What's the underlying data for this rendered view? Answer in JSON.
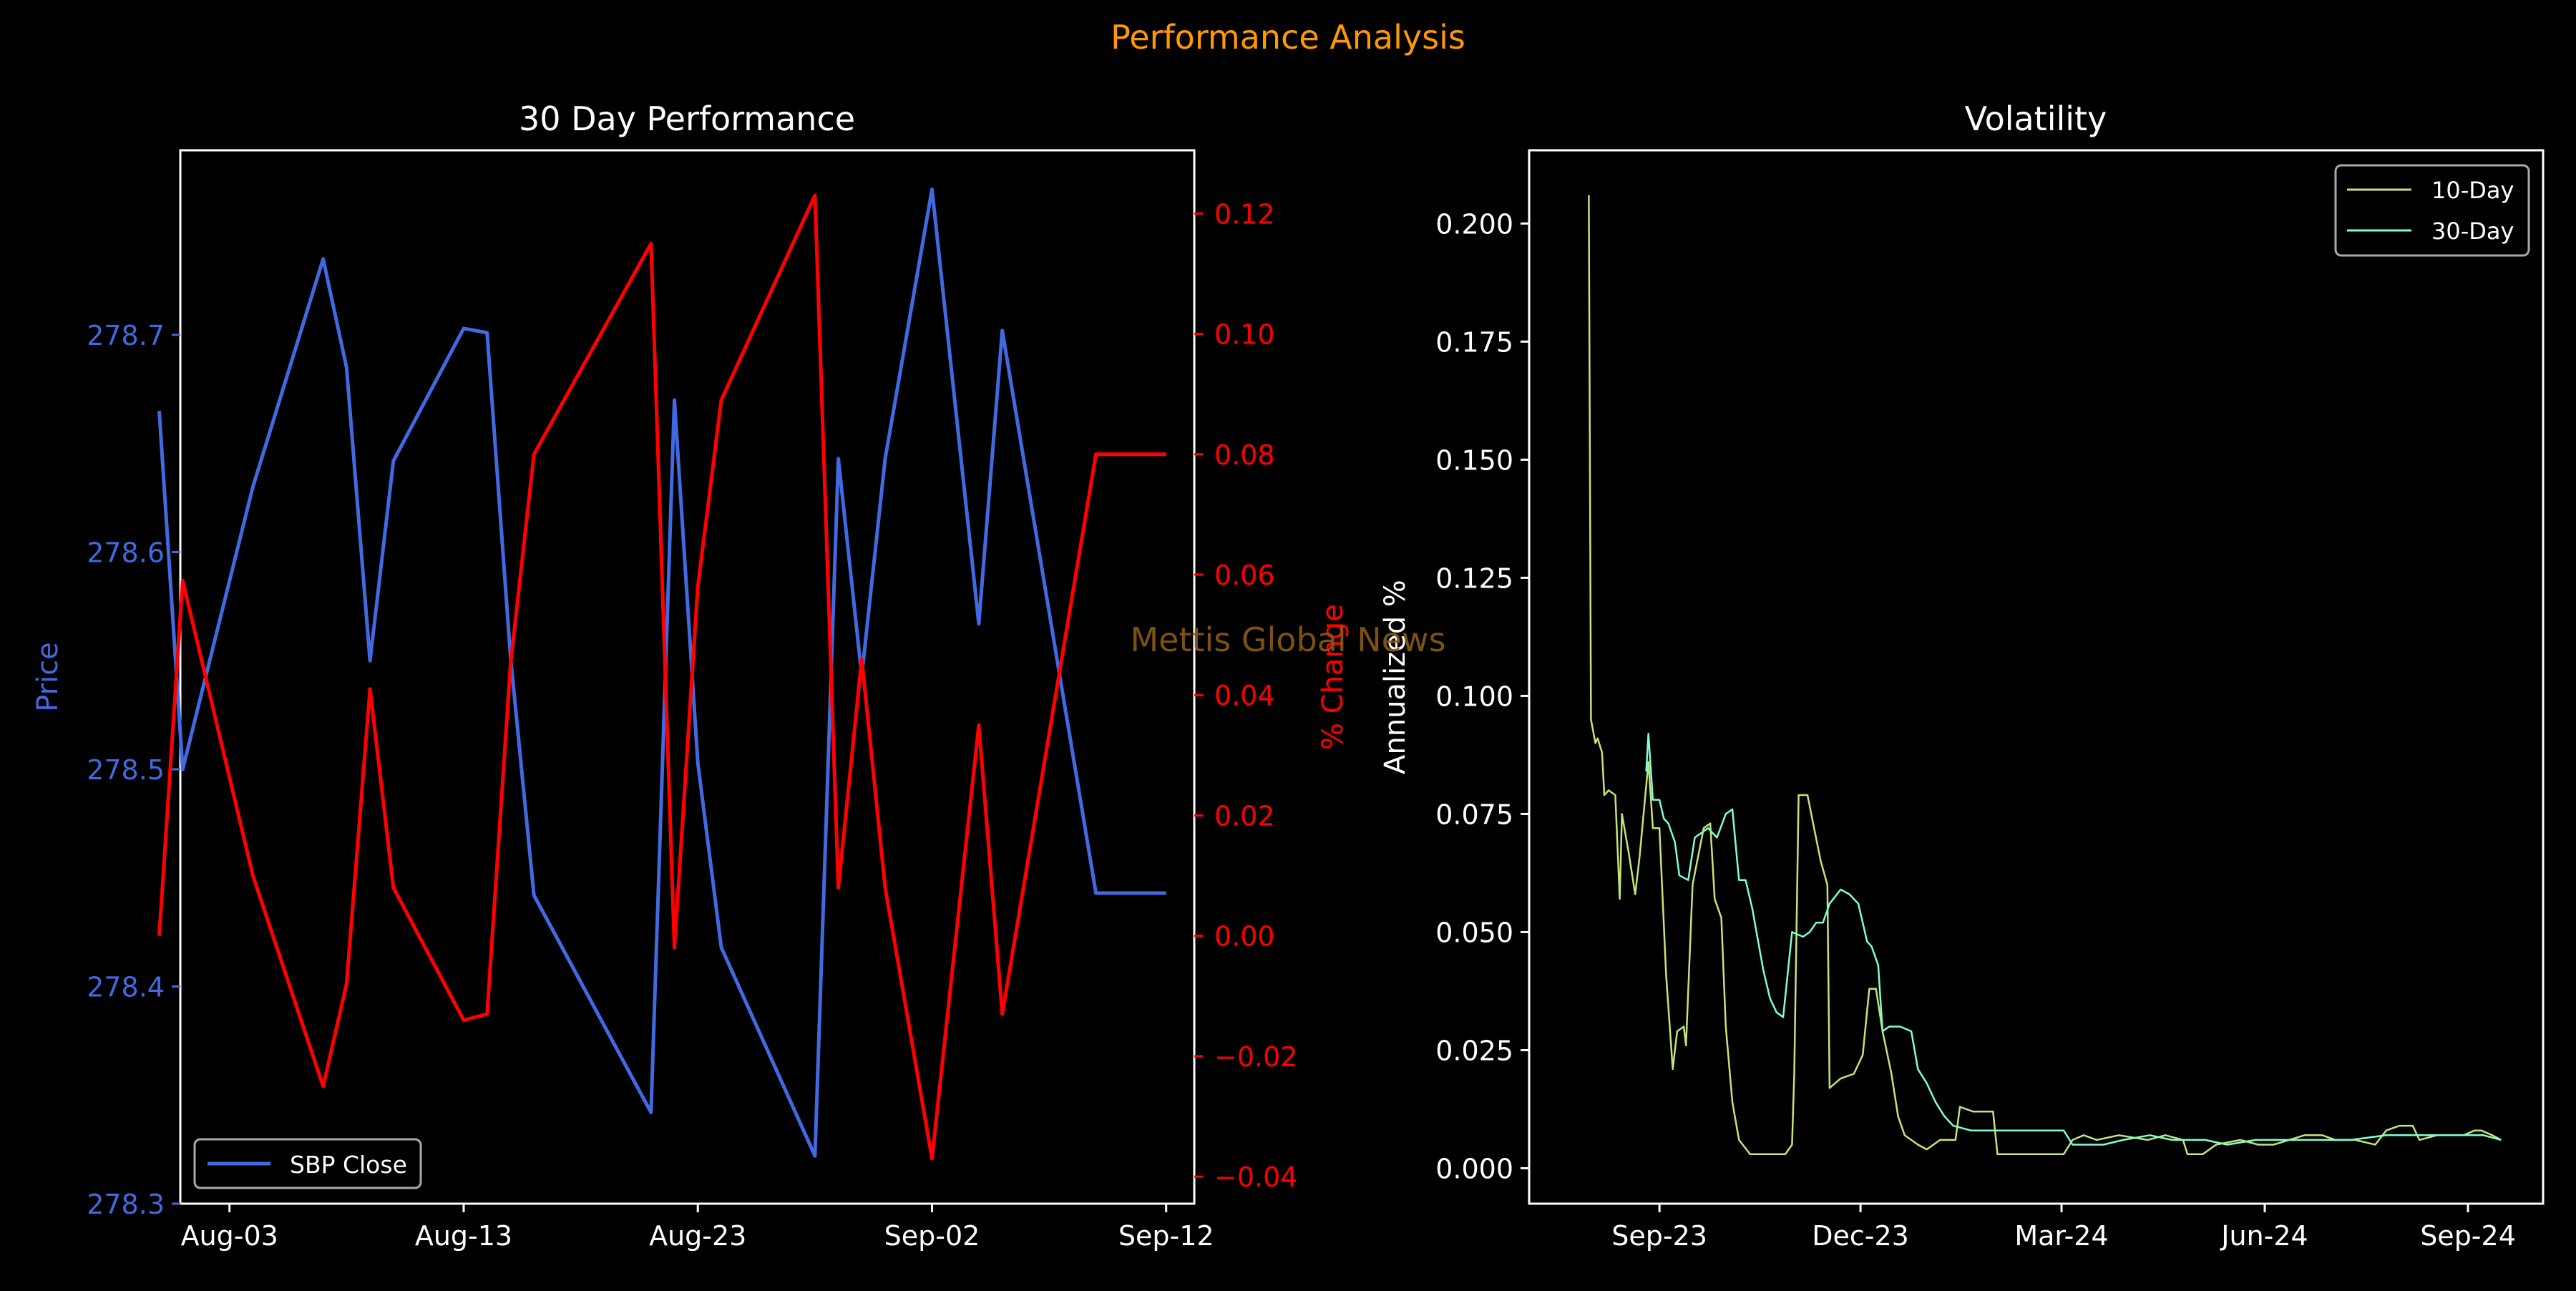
{
  "figure": {
    "title": "Performance Analysis",
    "watermark": "Mettis Global News",
    "title_color": "#ff9900",
    "watermark_color": "#8a5a14"
  },
  "chart_data": [
    {
      "type": "line",
      "title": "30 Day Performance",
      "xlabel": "",
      "ylabel": "Price",
      "ylabel_right": "% Change",
      "x_ticks": [
        "Aug-03",
        "Aug-13",
        "Aug-23",
        "Sep-02",
        "Sep-12"
      ],
      "x_tick_days": [
        3,
        13,
        23,
        33,
        43
      ],
      "x_range": [
        0.9,
        44.2
      ],
      "ylim": [
        278.3,
        278.785
      ],
      "y_ticks": [
        278.3,
        278.4,
        278.5,
        278.6,
        278.7
      ],
      "y_tick_labels": [
        "278.3",
        "278.4",
        "278.5",
        "278.6",
        "278.7"
      ],
      "ylim_right": [
        -0.0445,
        0.1305
      ],
      "y_ticks_right": [
        -0.04,
        -0.02,
        0.0,
        0.02,
        0.04,
        0.06,
        0.08,
        0.1,
        0.12
      ],
      "y_tick_labels_right": [
        "−0.04",
        "−0.02",
        "0.00",
        "0.02",
        "0.04",
        "0.06",
        "0.08",
        "0.10",
        "0.12"
      ],
      "legend": "lower-left",
      "x_dates": [
        "2023-07-31",
        "2023-08-01",
        "2023-08-04",
        "2023-08-07",
        "2023-08-08",
        "2023-08-09",
        "2023-08-10",
        "2023-08-13",
        "2023-08-14",
        "2023-08-15",
        "2023-08-16",
        "2023-08-21",
        "2023-08-22",
        "2023-08-23",
        "2023-08-24",
        "2023-08-28",
        "2023-08-29",
        "2023-08-30",
        "2023-08-31",
        "2023-09-02",
        "2023-09-04",
        "2023-09-05",
        "2023-09-09",
        "2023-09-12"
      ],
      "series": [
        {
          "name": "SBP Close",
          "axis": "left",
          "color": "#4169e1",
          "values": [
            278.665,
            278.5,
            278.63,
            278.735,
            278.685,
            278.55,
            278.642,
            278.703,
            278.701,
            278.552,
            278.442,
            278.342,
            278.67,
            278.503,
            278.418,
            278.322,
            278.643,
            278.543,
            278.643,
            278.767,
            278.567,
            278.702,
            278.443,
            278.443
          ]
        },
        {
          "name": "% Change",
          "axis": "right",
          "color": "#ff0000",
          "values": [
            0.0,
            0.059,
            0.01,
            -0.025,
            -0.008,
            0.041,
            0.008,
            -0.014,
            -0.013,
            0.045,
            0.08,
            0.115,
            -0.002,
            0.058,
            0.089,
            0.123,
            0.008,
            0.046,
            0.008,
            -0.037,
            0.035,
            -0.013,
            0.08,
            0.08
          ]
        }
      ]
    },
    {
      "type": "line",
      "title": "Volatility",
      "xlabel": "",
      "ylabel": "Annualized %",
      "x_ticks": [
        "Sep-23",
        "Dec-23",
        "Mar-24",
        "Jun-24",
        "Sep-24"
      ],
      "x_tick_dates": [
        "2023-09-01",
        "2023-12-01",
        "2024-03-01",
        "2024-06-01",
        "2024-09-01"
      ],
      "x_range": [
        "2023-07-04",
        "2024-10-05"
      ],
      "ylim": [
        -0.0075,
        0.2155
      ],
      "y_ticks": [
        0.0,
        0.025,
        0.05,
        0.075,
        0.1,
        0.125,
        0.15,
        0.175,
        0.2
      ],
      "y_tick_labels": [
        "0.000",
        "0.025",
        "0.050",
        "0.075",
        "0.100",
        "0.125",
        "0.150",
        "0.175",
        "0.200"
      ],
      "legend": "top-right",
      "series": [
        {
          "name": "10-Day",
          "color": "#c5e478",
          "points": [
            [
              "2023-07-31",
              0.206
            ],
            [
              "2023-08-01",
              0.095
            ],
            [
              "2023-08-03",
              0.09
            ],
            [
              "2023-08-04",
              0.091
            ],
            [
              "2023-08-06",
              0.088
            ],
            [
              "2023-08-07",
              0.079
            ],
            [
              "2023-08-09",
              0.08
            ],
            [
              "2023-08-12",
              0.079
            ],
            [
              "2023-08-14",
              0.057
            ],
            [
              "2023-08-15",
              0.075
            ],
            [
              "2023-08-18",
              0.067
            ],
            [
              "2023-08-21",
              0.058
            ],
            [
              "2023-08-23",
              0.066
            ],
            [
              "2023-08-27",
              0.086
            ],
            [
              "2023-08-29",
              0.072
            ],
            [
              "2023-09-01",
              0.072
            ],
            [
              "2023-09-04",
              0.041
            ],
            [
              "2023-09-07",
              0.021
            ],
            [
              "2023-09-09",
              0.029
            ],
            [
              "2023-09-12",
              0.03
            ],
            [
              "2023-09-13",
              0.026
            ],
            [
              "2023-09-16",
              0.06
            ],
            [
              "2023-09-21",
              0.072
            ],
            [
              "2023-09-24",
              0.073
            ],
            [
              "2023-09-26",
              0.057
            ],
            [
              "2023-09-29",
              0.053
            ],
            [
              "2023-10-01",
              0.03
            ],
            [
              "2023-10-04",
              0.014
            ],
            [
              "2023-10-07",
              0.006
            ],
            [
              "2023-10-12",
              0.003
            ],
            [
              "2023-10-20",
              0.003
            ],
            [
              "2023-10-28",
              0.003
            ],
            [
              "2023-10-31",
              0.005
            ],
            [
              "2023-11-01",
              0.02
            ],
            [
              "2023-11-03",
              0.079
            ],
            [
              "2023-11-07",
              0.079
            ],
            [
              "2023-11-10",
              0.072
            ],
            [
              "2023-11-13",
              0.065
            ],
            [
              "2023-11-16",
              0.06
            ],
            [
              "2023-11-17",
              0.017
            ],
            [
              "2023-11-22",
              0.019
            ],
            [
              "2023-11-28",
              0.02
            ],
            [
              "2023-12-02",
              0.024
            ],
            [
              "2023-12-05",
              0.038
            ],
            [
              "2023-12-08",
              0.038
            ],
            [
              "2023-12-11",
              0.029
            ],
            [
              "2023-12-15",
              0.02
            ],
            [
              "2023-12-18",
              0.011
            ],
            [
              "2023-12-21",
              0.007
            ],
            [
              "2023-12-27",
              0.005
            ],
            [
              "2023-12-31",
              0.004
            ],
            [
              "2024-01-06",
              0.006
            ],
            [
              "2024-01-13",
              0.006
            ],
            [
              "2024-01-15",
              0.013
            ],
            [
              "2024-01-21",
              0.012
            ],
            [
              "2024-01-30",
              0.012
            ],
            [
              "2024-02-01",
              0.003
            ],
            [
              "2024-02-13",
              0.003
            ],
            [
              "2024-02-22",
              0.003
            ],
            [
              "2024-03-02",
              0.003
            ],
            [
              "2024-03-06",
              0.006
            ],
            [
              "2024-03-11",
              0.007
            ],
            [
              "2024-03-17",
              0.006
            ],
            [
              "2024-03-27",
              0.007
            ],
            [
              "2024-04-09",
              0.006
            ],
            [
              "2024-04-17",
              0.007
            ],
            [
              "2024-04-25",
              0.006
            ],
            [
              "2024-04-27",
              0.003
            ],
            [
              "2024-05-04",
              0.003
            ],
            [
              "2024-05-10",
              0.005
            ],
            [
              "2024-05-21",
              0.006
            ],
            [
              "2024-05-29",
              0.005
            ],
            [
              "2024-06-05",
              0.005
            ],
            [
              "2024-06-12",
              0.006
            ],
            [
              "2024-06-19",
              0.007
            ],
            [
              "2024-06-27",
              0.007
            ],
            [
              "2024-07-03",
              0.006
            ],
            [
              "2024-07-12",
              0.006
            ],
            [
              "2024-07-21",
              0.005
            ],
            [
              "2024-07-26",
              0.008
            ],
            [
              "2024-08-01",
              0.009
            ],
            [
              "2024-08-07",
              0.009
            ],
            [
              "2024-08-10",
              0.006
            ],
            [
              "2024-08-18",
              0.007
            ],
            [
              "2024-08-25",
              0.007
            ],
            [
              "2024-08-30",
              0.007
            ],
            [
              "2024-09-04",
              0.008
            ],
            [
              "2024-09-07",
              0.008
            ],
            [
              "2024-09-12",
              0.007
            ],
            [
              "2024-09-16",
              0.006
            ]
          ]
        },
        {
          "name": "30-Day",
          "color": "#7fffd4",
          "points": [
            [
              "2023-08-26",
              0.084
            ],
            [
              "2023-08-27",
              0.092
            ],
            [
              "2023-08-29",
              0.078
            ],
            [
              "2023-09-01",
              0.078
            ],
            [
              "2023-09-03",
              0.074
            ],
            [
              "2023-09-05",
              0.073
            ],
            [
              "2023-09-08",
              0.069
            ],
            [
              "2023-09-10",
              0.062
            ],
            [
              "2023-09-14",
              0.061
            ],
            [
              "2023-09-17",
              0.07
            ],
            [
              "2023-09-20",
              0.071
            ],
            [
              "2023-09-23",
              0.072
            ],
            [
              "2023-09-27",
              0.07
            ],
            [
              "2023-10-01",
              0.075
            ],
            [
              "2023-10-04",
              0.076
            ],
            [
              "2023-10-07",
              0.061
            ],
            [
              "2023-10-10",
              0.061
            ],
            [
              "2023-10-13",
              0.055
            ],
            [
              "2023-10-18",
              0.042
            ],
            [
              "2023-10-21",
              0.036
            ],
            [
              "2023-10-24",
              0.033
            ],
            [
              "2023-10-27",
              0.032
            ],
            [
              "2023-10-31",
              0.05
            ],
            [
              "2023-11-05",
              0.049
            ],
            [
              "2023-11-08",
              0.05
            ],
            [
              "2023-11-11",
              0.052
            ],
            [
              "2023-11-14",
              0.052
            ],
            [
              "2023-11-17",
              0.056
            ],
            [
              "2023-11-22",
              0.059
            ],
            [
              "2023-11-26",
              0.058
            ],
            [
              "2023-11-30",
              0.056
            ],
            [
              "2023-12-04",
              0.048
            ],
            [
              "2023-12-06",
              0.047
            ],
            [
              "2023-12-09",
              0.043
            ],
            [
              "2023-12-11",
              0.029
            ],
            [
              "2023-12-14",
              0.03
            ],
            [
              "2023-12-19",
              0.03
            ],
            [
              "2023-12-24",
              0.029
            ],
            [
              "2023-12-27",
              0.021
            ],
            [
              "2023-12-31",
              0.018
            ],
            [
              "2024-01-04",
              0.014
            ],
            [
              "2024-01-08",
              0.011
            ],
            [
              "2024-01-12",
              0.009
            ],
            [
              "2024-01-20",
              0.008
            ],
            [
              "2024-02-02",
              0.008
            ],
            [
              "2024-02-16",
              0.008
            ],
            [
              "2024-03-02",
              0.008
            ],
            [
              "2024-03-06",
              0.005
            ],
            [
              "2024-03-20",
              0.005
            ],
            [
              "2024-03-29",
              0.006
            ],
            [
              "2024-04-10",
              0.007
            ],
            [
              "2024-04-20",
              0.006
            ],
            [
              "2024-05-05",
              0.006
            ],
            [
              "2024-05-15",
              0.005
            ],
            [
              "2024-05-28",
              0.006
            ],
            [
              "2024-06-11",
              0.006
            ],
            [
              "2024-06-26",
              0.006
            ],
            [
              "2024-07-10",
              0.006
            ],
            [
              "2024-07-26",
              0.007
            ],
            [
              "2024-08-10",
              0.007
            ],
            [
              "2024-08-25",
              0.007
            ],
            [
              "2024-09-08",
              0.007
            ],
            [
              "2024-09-16",
              0.006
            ]
          ]
        }
      ]
    }
  ]
}
